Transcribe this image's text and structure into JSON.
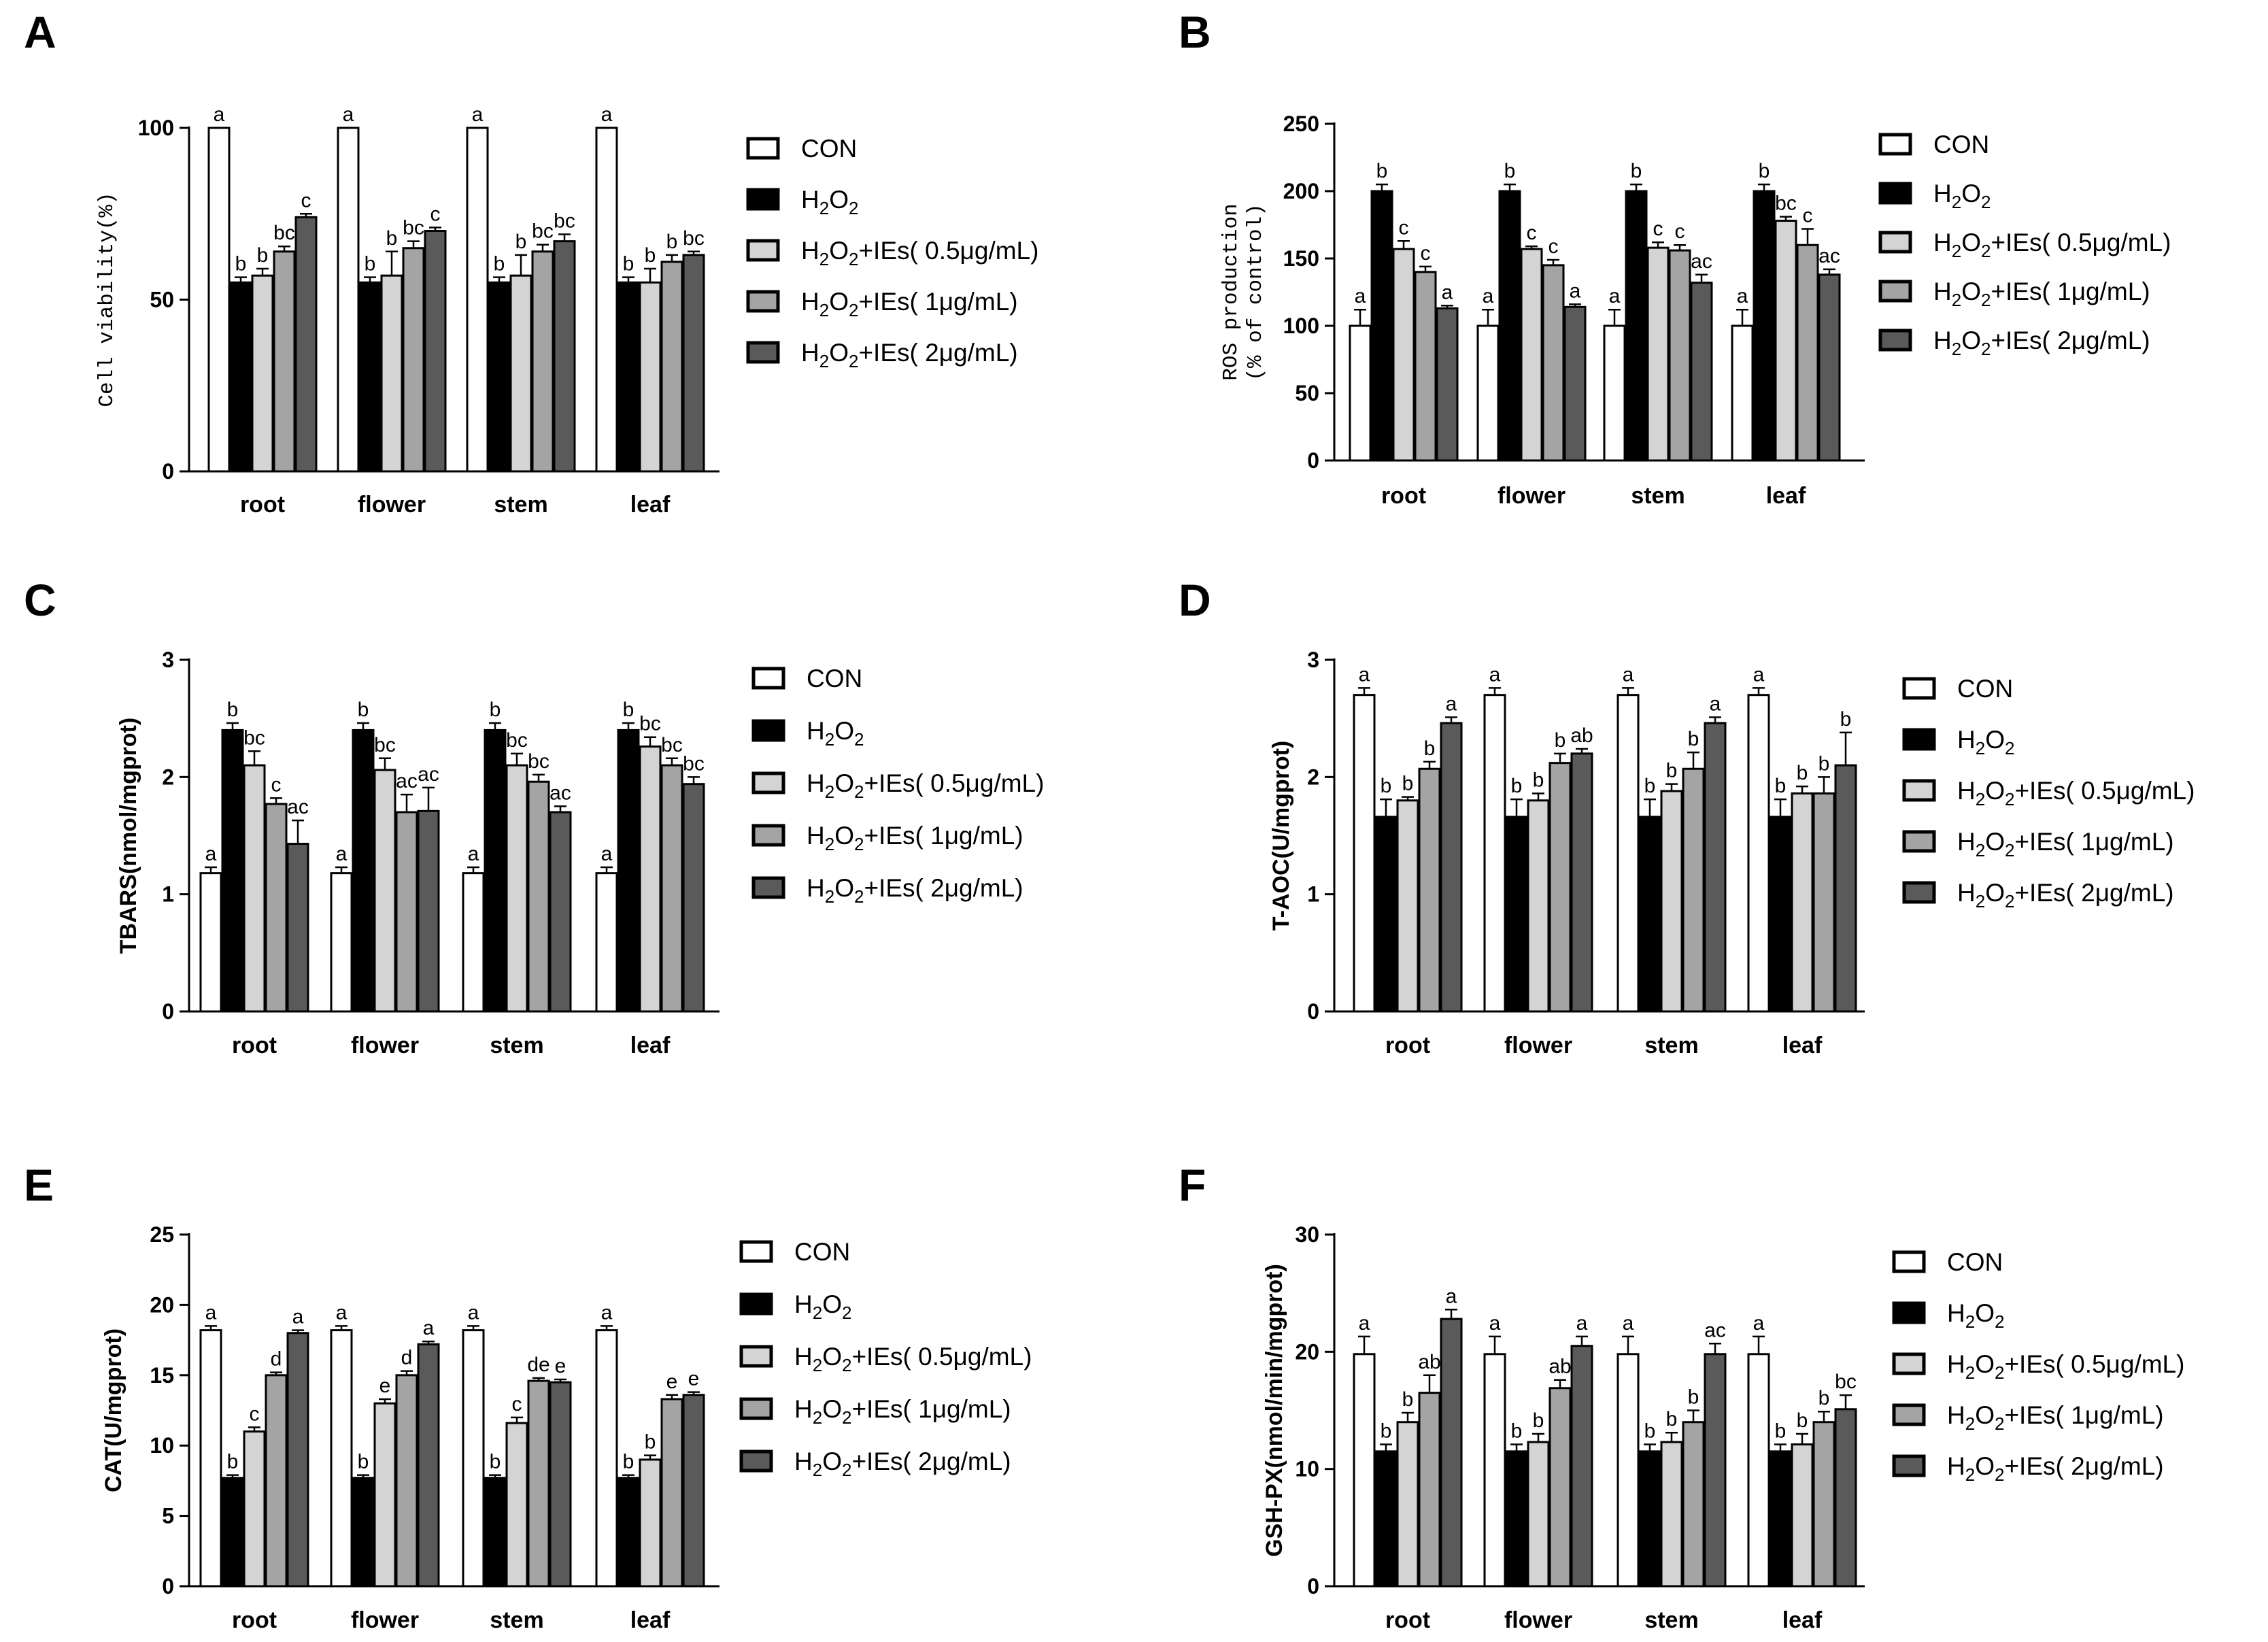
{
  "colors": {
    "con": "#ffffff",
    "h2o2": "#000000",
    "ies_05": "#d4d4d4",
    "ies_1": "#a4a4a4",
    "ies_2": "#5a5a5a",
    "axis": "#000000"
  },
  "legend_items": [
    {
      "key": "con",
      "label": "CON",
      "pre": "CON",
      "sub1": "",
      "mid": "",
      "sub2": "",
      "post": ""
    },
    {
      "key": "h2o2",
      "label": "H2O2",
      "pre": "H",
      "sub1": "2",
      "mid": "O",
      "sub2": "2",
      "post": ""
    },
    {
      "key": "ies_05",
      "label": "H2O2+IEs( 0.5μg/mL)",
      "pre": "H",
      "sub1": "2",
      "mid": "O",
      "sub2": "2",
      "post": "+IEs( 0.5μg/mL)"
    },
    {
      "key": "ies_1",
      "label": "H2O2+IEs( 1μg/mL)",
      "pre": "H",
      "sub1": "2",
      "mid": "O",
      "sub2": "2",
      "post": "+IEs( 1μg/mL)"
    },
    {
      "key": "ies_2",
      "label": "H2O2+IEs( 2μg/mL)",
      "pre": "H",
      "sub1": "2",
      "mid": "O",
      "sub2": "2",
      "post": "+IEs( 2μg/mL)"
    }
  ],
  "chart_data": [
    {
      "panel": "A",
      "type": "bar",
      "ylabel": "Cell viability(%)",
      "categories": [
        "root",
        "flower",
        "stem",
        "leaf"
      ],
      "ylim": [
        0,
        100
      ],
      "yticks": [
        0,
        50,
        100
      ],
      "series": [
        {
          "name": "CON",
          "values": [
            100,
            100,
            100,
            100
          ],
          "errors": [
            0,
            0,
            0,
            0
          ],
          "labels": [
            "a",
            "a",
            "a",
            "a"
          ]
        },
        {
          "name": "H2O2",
          "values": [
            55,
            55,
            55,
            55
          ],
          "errors": [
            1.5,
            1.5,
            1.5,
            1.5
          ],
          "labels": [
            "b",
            "b",
            "b",
            "b"
          ]
        },
        {
          "name": "H2O2+IEs( 0.5μg/mL)",
          "values": [
            57,
            57,
            57,
            55
          ],
          "errors": [
            2,
            7,
            6,
            4
          ],
          "labels": [
            "b",
            "b",
            "b",
            "b"
          ]
        },
        {
          "name": "H2O2+IEs( 1μg/mL)",
          "values": [
            64,
            65,
            64,
            61
          ],
          "errors": [
            1.5,
            2,
            2,
            2
          ],
          "labels": [
            "bc",
            "bc",
            "bc",
            "b"
          ]
        },
        {
          "name": "H2O2+IEs( 2μg/mL)",
          "values": [
            74,
            70,
            67,
            63
          ],
          "errors": [
            1,
            1,
            2,
            1
          ],
          "labels": [
            "c",
            "c",
            "bc",
            "bc"
          ]
        }
      ]
    },
    {
      "panel": "B",
      "type": "bar",
      "ylabel": "ROS production (% of control)",
      "categories": [
        "root",
        "flower",
        "stem",
        "leaf"
      ],
      "ylim": [
        0,
        250
      ],
      "yticks": [
        0,
        50,
        100,
        150,
        200,
        250
      ],
      "series": [
        {
          "name": "CON",
          "values": [
            100,
            100,
            100,
            100
          ],
          "errors": [
            12,
            12,
            12,
            12
          ],
          "labels": [
            "a",
            "a",
            "a",
            "a"
          ]
        },
        {
          "name": "H2O2",
          "values": [
            200,
            200,
            200,
            200
          ],
          "errors": [
            5,
            5,
            5,
            5
          ],
          "labels": [
            "b",
            "b",
            "b",
            "b"
          ]
        },
        {
          "name": "H2O2+IEs( 0.5μg/mL)",
          "values": [
            157,
            157,
            158,
            178
          ],
          "errors": [
            6,
            2,
            4,
            3
          ],
          "labels": [
            "c",
            "c",
            "c",
            "bc"
          ]
        },
        {
          "name": "H2O2+IEs( 1μg/mL)",
          "values": [
            140,
            145,
            156,
            160
          ],
          "errors": [
            4,
            4,
            4,
            12
          ],
          "labels": [
            "c",
            "c",
            "c",
            "c"
          ]
        },
        {
          "name": "H2O2+IEs( 2μg/mL)",
          "values": [
            113,
            114,
            132,
            138
          ],
          "errors": [
            2,
            2,
            6,
            4
          ],
          "labels": [
            "a",
            "a",
            "ac",
            "ac"
          ]
        }
      ]
    },
    {
      "panel": "C",
      "type": "bar",
      "ylabel": "TBARS(nmol/mgprot)",
      "categories": [
        "root",
        "flower",
        "stem",
        "leaf"
      ],
      "ylim": [
        0,
        3
      ],
      "yticks": [
        0,
        1,
        2,
        3
      ],
      "series": [
        {
          "name": "CON",
          "values": [
            1.18,
            1.18,
            1.18,
            1.18
          ],
          "errors": [
            0.05,
            0.05,
            0.05,
            0.05
          ],
          "labels": [
            "a",
            "a",
            "a",
            "a"
          ]
        },
        {
          "name": "H2O2",
          "values": [
            2.4,
            2.4,
            2.4,
            2.4
          ],
          "errors": [
            0.06,
            0.06,
            0.06,
            0.06
          ],
          "labels": [
            "b",
            "b",
            "b",
            "b"
          ]
        },
        {
          "name": "H2O2+IEs( 0.5μg/mL)",
          "values": [
            2.1,
            2.06,
            2.1,
            2.26
          ],
          "errors": [
            0.12,
            0.1,
            0.1,
            0.08
          ],
          "labels": [
            "bc",
            "bc",
            "bc",
            "bc"
          ]
        },
        {
          "name": "H2O2+IEs( 1μg/mL)",
          "values": [
            1.77,
            1.7,
            1.96,
            2.1
          ],
          "errors": [
            0.05,
            0.15,
            0.06,
            0.06
          ],
          "labels": [
            "c",
            "ac",
            "bc",
            "bc"
          ]
        },
        {
          "name": "H2O2+IEs( 2μg/mL)",
          "values": [
            1.43,
            1.71,
            1.7,
            1.94
          ],
          "errors": [
            0.2,
            0.2,
            0.05,
            0.06
          ],
          "labels": [
            "ac",
            "ac",
            "ac",
            "bc"
          ]
        }
      ]
    },
    {
      "panel": "D",
      "type": "bar",
      "ylabel": "T-AOC(U/mgprot)",
      "categories": [
        "root",
        "flower",
        "stem",
        "leaf"
      ],
      "ylim": [
        0,
        3
      ],
      "yticks": [
        0,
        1,
        2,
        3
      ],
      "series": [
        {
          "name": "CON",
          "values": [
            2.7,
            2.7,
            2.7,
            2.7
          ],
          "errors": [
            0.06,
            0.06,
            0.06,
            0.06
          ],
          "labels": [
            "a",
            "a",
            "a",
            "a"
          ]
        },
        {
          "name": "H2O2",
          "values": [
            1.66,
            1.66,
            1.66,
            1.66
          ],
          "errors": [
            0.15,
            0.15,
            0.15,
            0.15
          ],
          "labels": [
            "b",
            "b",
            "b",
            "b"
          ]
        },
        {
          "name": "H2O2+IEs( 0.5μg/mL)",
          "values": [
            1.8,
            1.8,
            1.88,
            1.86
          ],
          "errors": [
            0.03,
            0.06,
            0.06,
            0.06
          ],
          "labels": [
            "b",
            "b",
            "b",
            "b"
          ]
        },
        {
          "name": "H2O2+IEs( 1μg/mL)",
          "values": [
            2.07,
            2.12,
            2.07,
            1.86
          ],
          "errors": [
            0.06,
            0.08,
            0.14,
            0.14
          ],
          "labels": [
            "b",
            "b",
            "b",
            "b"
          ]
        },
        {
          "name": "H2O2+IEs( 2μg/mL)",
          "values": [
            2.46,
            2.2,
            2.46,
            2.1
          ],
          "errors": [
            0.05,
            0.04,
            0.05,
            0.28
          ],
          "labels": [
            "a",
            "ab",
            "a",
            "b"
          ]
        }
      ]
    },
    {
      "panel": "E",
      "type": "bar",
      "ylabel": "CAT(U/mgprot)",
      "categories": [
        "root",
        "flower",
        "stem",
        "leaf"
      ],
      "ylim": [
        0,
        25
      ],
      "yticks": [
        0,
        5,
        10,
        15,
        20,
        25
      ],
      "series": [
        {
          "name": "CON",
          "values": [
            18.2,
            18.2,
            18.2,
            18.2
          ],
          "errors": [
            0.3,
            0.3,
            0.3,
            0.3
          ],
          "labels": [
            "a",
            "a",
            "a",
            "a"
          ]
        },
        {
          "name": "H2O2",
          "values": [
            7.7,
            7.7,
            7.7,
            7.7
          ],
          "errors": [
            0.2,
            0.2,
            0.2,
            0.2
          ],
          "labels": [
            "b",
            "b",
            "b",
            "b"
          ]
        },
        {
          "name": "H2O2+IEs( 0.5μg/mL)",
          "values": [
            11.0,
            13.0,
            11.6,
            9.0
          ],
          "errors": [
            0.3,
            0.3,
            0.4,
            0.3
          ],
          "labels": [
            "c",
            "e",
            "c",
            "b"
          ]
        },
        {
          "name": "H2O2+IEs( 1μg/mL)",
          "values": [
            15.0,
            15.0,
            14.6,
            13.3
          ],
          "errors": [
            0.2,
            0.3,
            0.2,
            0.3
          ],
          "labels": [
            "d",
            "d",
            "de",
            "e"
          ]
        },
        {
          "name": "H2O2+IEs( 2μg/mL)",
          "values": [
            18.0,
            17.2,
            14.5,
            13.6
          ],
          "errors": [
            0.2,
            0.2,
            0.2,
            0.2
          ],
          "labels": [
            "a",
            "a",
            "e",
            "e"
          ]
        }
      ]
    },
    {
      "panel": "F",
      "type": "bar",
      "ylabel": "GSH-PX(nmol/min/mgprot)",
      "categories": [
        "root",
        "flower",
        "stem",
        "leaf"
      ],
      "ylim": [
        0,
        30
      ],
      "yticks": [
        0,
        10,
        20,
        30
      ],
      "series": [
        {
          "name": "CON",
          "values": [
            19.8,
            19.8,
            19.8,
            19.8
          ],
          "errors": [
            1.5,
            1.5,
            1.5,
            1.5
          ],
          "labels": [
            "a",
            "a",
            "a",
            "a"
          ]
        },
        {
          "name": "H2O2",
          "values": [
            11.5,
            11.5,
            11.5,
            11.5
          ],
          "errors": [
            0.6,
            0.6,
            0.6,
            0.6
          ],
          "labels": [
            "b",
            "b",
            "b",
            "b"
          ]
        },
        {
          "name": "H2O2+IEs( 0.5μg/mL)",
          "values": [
            14.0,
            12.3,
            12.3,
            12.1
          ],
          "errors": [
            0.8,
            0.7,
            0.8,
            0.9
          ],
          "labels": [
            "b",
            "b",
            "b",
            "b"
          ]
        },
        {
          "name": "H2O2+IEs( 1μg/mL)",
          "values": [
            16.5,
            16.9,
            14.0,
            14.0
          ],
          "errors": [
            1.5,
            0.7,
            1.0,
            0.9
          ],
          "labels": [
            "ab",
            "ab",
            "b",
            "b"
          ]
        },
        {
          "name": "H2O2+IEs( 2μg/mL)",
          "values": [
            22.8,
            20.5,
            19.8,
            15.1
          ],
          "errors": [
            0.8,
            0.8,
            0.9,
            1.2
          ],
          "labels": [
            "a",
            "a",
            "ac",
            "bc"
          ]
        }
      ]
    }
  ]
}
